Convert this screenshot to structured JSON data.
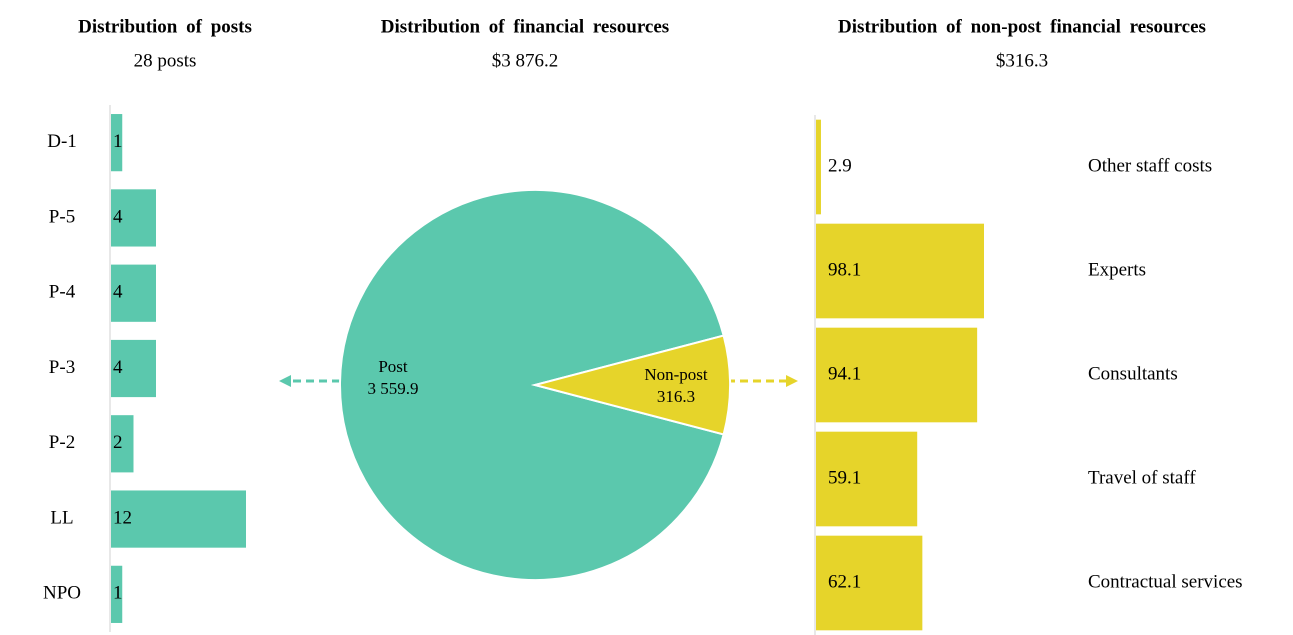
{
  "chart_data": [
    {
      "type": "hbar",
      "title": "Distribution of posts",
      "subtitle": "28 posts",
      "categories": [
        "D-1",
        "P-5",
        "P-4",
        "P-3",
        "P-2",
        "LL",
        "NPO"
      ],
      "values": [
        1,
        4,
        4,
        4,
        2,
        12,
        1
      ],
      "color": "#5bc8ad"
    },
    {
      "type": "pie",
      "title": "Distribution of financial resources",
      "subtitle": "$3 876.2",
      "categories": [
        "Post",
        "Non-post"
      ],
      "values": [
        3559.9,
        316.3
      ],
      "value_labels": [
        "3 559.9",
        "316.3"
      ],
      "colors": [
        "#5bc8ad",
        "#e6d42a"
      ]
    },
    {
      "type": "hbar",
      "title": "Distribution of non-post financial resources",
      "subtitle": "$316.3",
      "categories": [
        "Other staff costs",
        "Experts",
        "Consultants",
        "Travel of staff",
        "Contractual services"
      ],
      "values": [
        2.9,
        98.1,
        94.1,
        59.1,
        62.1
      ],
      "color": "#e6d42a"
    }
  ]
}
